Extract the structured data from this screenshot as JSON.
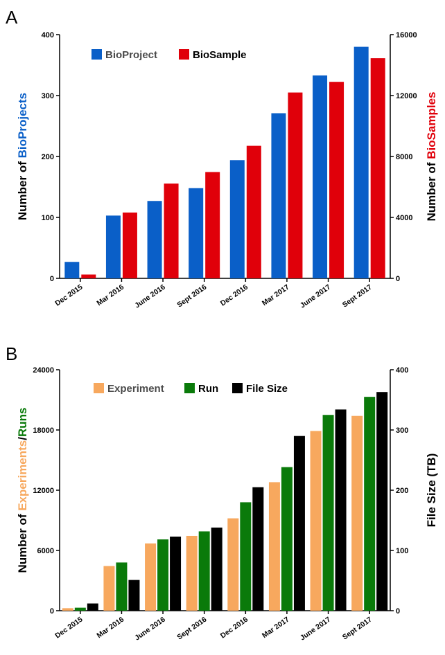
{
  "panels": {
    "a": {
      "letter": "A"
    },
    "b": {
      "letter": "B"
    }
  },
  "chart_data": [
    {
      "type": "bar",
      "categories": [
        "Dec 2015",
        "Mar 2016",
        "June 2016",
        "Sept 2016",
        "Dec 2016",
        "Mar 2017",
        "June 2017",
        "Sept 2017"
      ],
      "series": [
        {
          "name": "BioProject",
          "axis": "left",
          "color": "#0a5fc8",
          "values": [
            27,
            103,
            127,
            148,
            194,
            271,
            333,
            380
          ]
        },
        {
          "name": "BioSample",
          "axis": "right",
          "color": "#e0000a",
          "values": [
            250,
            4320,
            6220,
            6980,
            8700,
            12200,
            12900,
            14450
          ]
        }
      ],
      "left_axis": {
        "label_prefix": "Number of ",
        "label_highlight": "BioProjects",
        "label_color": "#0a5fc8",
        "ylim": [
          0,
          400
        ],
        "ticks": [
          0,
          100,
          200,
          300,
          400
        ]
      },
      "right_axis": {
        "label_prefix": "Number of ",
        "label_highlight": "BioSamples",
        "label_color": "#e0000a",
        "ylim": [
          0,
          16000
        ],
        "ticks": [
          0,
          4000,
          8000,
          12000,
          16000
        ]
      },
      "legend": {
        "placement": "top-left",
        "text_colors": [
          "#4a4a4a",
          "#000000"
        ]
      }
    },
    {
      "type": "bar",
      "categories": [
        "Dec 2015",
        "Mar 2016",
        "June 2016",
        "Sept 2016",
        "Dec 2016",
        "Mar 2017",
        "June 2017",
        "Sept 2017"
      ],
      "series": [
        {
          "name": "Experiment",
          "axis": "left",
          "color": "#f7a85e",
          "values": [
            250,
            4450,
            6700,
            7450,
            9200,
            12800,
            17900,
            19400
          ]
        },
        {
          "name": "Run",
          "axis": "left",
          "color": "#0a7a0a",
          "values": [
            300,
            4800,
            7100,
            7900,
            10800,
            14300,
            19500,
            21300
          ]
        },
        {
          "name": "File Size",
          "axis": "right",
          "color": "#000000",
          "values": [
            12,
            51,
            123,
            138,
            205,
            290,
            334,
            363
          ]
        }
      ],
      "left_axis": {
        "label_prefix": "Number of ",
        "label_highlight": "Experiments",
        "label_sep": "/",
        "label_highlight2": "Runs",
        "label_color": "#f7a85e",
        "label_color2": "#0a7a0a",
        "ylim": [
          0,
          24000
        ],
        "ticks": [
          0,
          6000,
          12000,
          18000,
          24000
        ]
      },
      "right_axis": {
        "label": "File Size (TB)",
        "ylim": [
          0,
          400
        ],
        "ticks": [
          0,
          100,
          200,
          300,
          400
        ]
      },
      "legend": {
        "placement": "top-left",
        "text_colors": [
          "#4a4a4a",
          "#000000",
          "#000000"
        ]
      }
    }
  ]
}
